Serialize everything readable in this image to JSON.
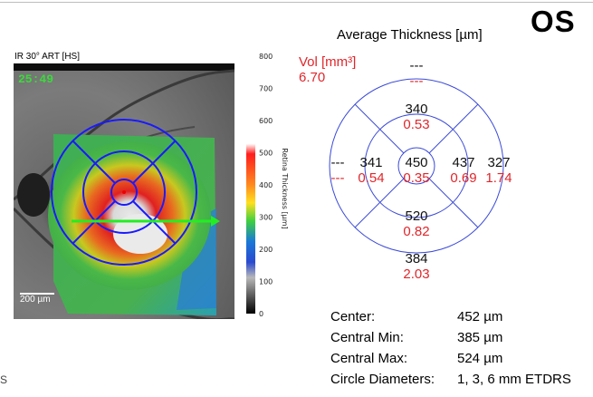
{
  "header": {
    "eye": "OS",
    "title": "Average Thickness [µm]"
  },
  "image": {
    "label": "IR 30° ART [HS]",
    "timestamp": "25:49",
    "scalebar": "200 µm"
  },
  "colorbar": {
    "title": "Retina Thickness [µm]",
    "ticks": [
      "800",
      "700",
      "600",
      "500",
      "400",
      "300",
      "200",
      "100",
      "0"
    ],
    "colors": [
      "#ffffff",
      "#ffffff",
      "#ffffff",
      "#ff1e1e",
      "#ffd21e",
      "#3fd03f",
      "#1a78d8",
      "#b0b0b0",
      "#000000"
    ]
  },
  "etdrs": {
    "vol_label": "Vol [mm³]",
    "vol_total": "6.70",
    "center": {
      "thickness": "450",
      "volume": "0.35"
    },
    "inner_superior": {
      "thickness": "340",
      "volume": "0.53"
    },
    "inner_nasal": {
      "thickness": "341",
      "volume": "0.54"
    },
    "inner_temporal": {
      "thickness": "437",
      "volume": "0.69"
    },
    "inner_inferior": {
      "thickness": "520",
      "volume": "0.82"
    },
    "outer_superior": {
      "thickness": "---",
      "volume": "---"
    },
    "outer_nasal": {
      "thickness": "---",
      "volume": "---"
    },
    "outer_temporal": {
      "thickness": "327",
      "volume": "1.74"
    },
    "outer_inferior": {
      "thickness": "384",
      "volume": "2.03"
    }
  },
  "stats": [
    {
      "key": "Center:",
      "value": "452 µm"
    },
    {
      "key": "Central Min:",
      "value": "385 µm"
    },
    {
      "key": "Central Max:",
      "value": "524 µm"
    },
    {
      "key": "Circle Diameters:",
      "value": "1, 3, 6 mm ETDRS"
    }
  ],
  "corner_text": "S"
}
